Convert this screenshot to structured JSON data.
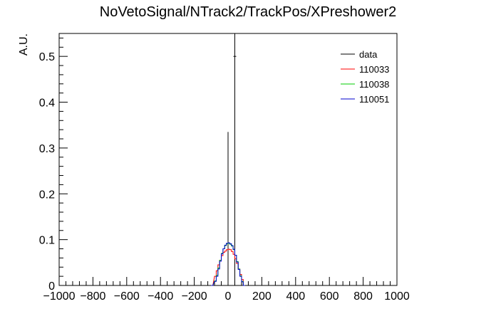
{
  "chart_data": {
    "type": "histogram",
    "title": "NoVetoSignal/NTrack2/TrackPos/XPreshower2",
    "xlabel": "",
    "ylabel": "A.U.",
    "xlim": [
      -1000,
      1000
    ],
    "ylim": [
      0,
      0.55
    ],
    "x_ticks": [
      -1000,
      -800,
      -600,
      -400,
      -200,
      0,
      200,
      400,
      600,
      800,
      1000
    ],
    "y_ticks": [
      0,
      0.1,
      0.2,
      0.3,
      0.4,
      0.5
    ],
    "x_tick_labels": [
      "−1000",
      "−800",
      "−600",
      "−400",
      "−200",
      "0",
      "200",
      "400",
      "600",
      "800",
      "1000"
    ],
    "y_tick_labels": [
      "0",
      "0.1",
      "0.2",
      "0.3",
      "0.4",
      "0.5"
    ],
    "legend_position": "top-right",
    "series": [
      {
        "name": "data",
        "color": "#000000",
        "style": "points-with-errorbars",
        "points": [
          {
            "x": 0,
            "y": 0.0,
            "err": 0.335
          },
          {
            "x": 40,
            "y": 0.5,
            "err": 0.5
          }
        ]
      },
      {
        "name": "110033",
        "color": "#ff0000",
        "style": "step",
        "bins": [
          {
            "x": -100,
            "y": 0.0
          },
          {
            "x": -80,
            "y": 0.02
          },
          {
            "x": -70,
            "y": 0.032
          },
          {
            "x": -60,
            "y": 0.045
          },
          {
            "x": -50,
            "y": 0.055
          },
          {
            "x": -40,
            "y": 0.065
          },
          {
            "x": -30,
            "y": 0.072
          },
          {
            "x": -20,
            "y": 0.075
          },
          {
            "x": -10,
            "y": 0.078
          },
          {
            "x": 0,
            "y": 0.079
          },
          {
            "x": 10,
            "y": 0.078
          },
          {
            "x": 20,
            "y": 0.074
          },
          {
            "x": 30,
            "y": 0.068
          },
          {
            "x": 40,
            "y": 0.058
          },
          {
            "x": 50,
            "y": 0.048
          },
          {
            "x": 60,
            "y": 0.036
          },
          {
            "x": 70,
            "y": 0.024
          },
          {
            "x": 80,
            "y": 0.013
          },
          {
            "x": 90,
            "y": 0.0
          }
        ]
      },
      {
        "name": "110038",
        "color": "#00cc00",
        "style": "step",
        "bins": [
          {
            "x": -100,
            "y": 0.0
          },
          {
            "x": -80,
            "y": 0.01
          },
          {
            "x": -70,
            "y": 0.022
          },
          {
            "x": -60,
            "y": 0.038
          },
          {
            "x": -50,
            "y": 0.055
          },
          {
            "x": -40,
            "y": 0.07
          },
          {
            "x": -30,
            "y": 0.08
          },
          {
            "x": -20,
            "y": 0.087
          },
          {
            "x": -10,
            "y": 0.091
          },
          {
            "x": 0,
            "y": 0.092
          },
          {
            "x": 10,
            "y": 0.09
          },
          {
            "x": 20,
            "y": 0.086
          },
          {
            "x": 30,
            "y": 0.078
          },
          {
            "x": 40,
            "y": 0.066
          },
          {
            "x": 50,
            "y": 0.052
          },
          {
            "x": 60,
            "y": 0.036
          },
          {
            "x": 70,
            "y": 0.021
          },
          {
            "x": 80,
            "y": 0.009
          },
          {
            "x": 90,
            "y": 0.0
          }
        ]
      },
      {
        "name": "110051",
        "color": "#0000cc",
        "style": "step",
        "bins": [
          {
            "x": -100,
            "y": 0.0
          },
          {
            "x": -80,
            "y": 0.009
          },
          {
            "x": -70,
            "y": 0.02
          },
          {
            "x": -60,
            "y": 0.036
          },
          {
            "x": -50,
            "y": 0.053
          },
          {
            "x": -40,
            "y": 0.069
          },
          {
            "x": -30,
            "y": 0.08
          },
          {
            "x": -20,
            "y": 0.088
          },
          {
            "x": -10,
            "y": 0.092
          },
          {
            "x": 0,
            "y": 0.093
          },
          {
            "x": 10,
            "y": 0.091
          },
          {
            "x": 20,
            "y": 0.087
          },
          {
            "x": 30,
            "y": 0.079
          },
          {
            "x": 40,
            "y": 0.066
          },
          {
            "x": 50,
            "y": 0.051
          },
          {
            "x": 60,
            "y": 0.035
          },
          {
            "x": 70,
            "y": 0.02
          },
          {
            "x": 80,
            "y": 0.008
          },
          {
            "x": 90,
            "y": 0.0
          }
        ]
      }
    ]
  }
}
